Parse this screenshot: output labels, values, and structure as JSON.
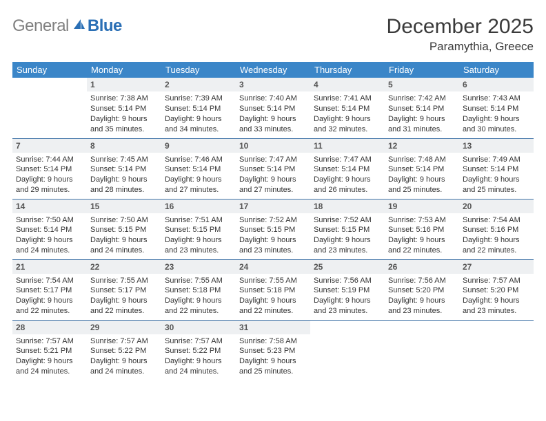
{
  "brand": {
    "gray": "General",
    "blue": "Blue"
  },
  "title": "December 2025",
  "location": "Paramythia, Greece",
  "colors": {
    "header_bg": "#3b86c8",
    "header_text": "#ffffff",
    "row_divider": "#3b6fa5",
    "daynum_bg": "#eef0f2",
    "body_text": "#333333",
    "logo_gray": "#808080",
    "logo_blue": "#2a6fb5",
    "background": "#ffffff"
  },
  "typography": {
    "month_title_fontsize": 30,
    "location_fontsize": 17,
    "dayhead_fontsize": 13,
    "daynum_fontsize": 12,
    "dayinfo_fontsize": 11
  },
  "calendar": {
    "type": "table",
    "columns": [
      "Sunday",
      "Monday",
      "Tuesday",
      "Wednesday",
      "Thursday",
      "Friday",
      "Saturday"
    ],
    "weeks": [
      [
        null,
        {
          "n": "1",
          "sr": "7:38 AM",
          "ss": "5:14 PM",
          "dl": "9 hours and 35 minutes."
        },
        {
          "n": "2",
          "sr": "7:39 AM",
          "ss": "5:14 PM",
          "dl": "9 hours and 34 minutes."
        },
        {
          "n": "3",
          "sr": "7:40 AM",
          "ss": "5:14 PM",
          "dl": "9 hours and 33 minutes."
        },
        {
          "n": "4",
          "sr": "7:41 AM",
          "ss": "5:14 PM",
          "dl": "9 hours and 32 minutes."
        },
        {
          "n": "5",
          "sr": "7:42 AM",
          "ss": "5:14 PM",
          "dl": "9 hours and 31 minutes."
        },
        {
          "n": "6",
          "sr": "7:43 AM",
          "ss": "5:14 PM",
          "dl": "9 hours and 30 minutes."
        }
      ],
      [
        {
          "n": "7",
          "sr": "7:44 AM",
          "ss": "5:14 PM",
          "dl": "9 hours and 29 minutes."
        },
        {
          "n": "8",
          "sr": "7:45 AM",
          "ss": "5:14 PM",
          "dl": "9 hours and 28 minutes."
        },
        {
          "n": "9",
          "sr": "7:46 AM",
          "ss": "5:14 PM",
          "dl": "9 hours and 27 minutes."
        },
        {
          "n": "10",
          "sr": "7:47 AM",
          "ss": "5:14 PM",
          "dl": "9 hours and 27 minutes."
        },
        {
          "n": "11",
          "sr": "7:47 AM",
          "ss": "5:14 PM",
          "dl": "9 hours and 26 minutes."
        },
        {
          "n": "12",
          "sr": "7:48 AM",
          "ss": "5:14 PM",
          "dl": "9 hours and 25 minutes."
        },
        {
          "n": "13",
          "sr": "7:49 AM",
          "ss": "5:14 PM",
          "dl": "9 hours and 25 minutes."
        }
      ],
      [
        {
          "n": "14",
          "sr": "7:50 AM",
          "ss": "5:14 PM",
          "dl": "9 hours and 24 minutes."
        },
        {
          "n": "15",
          "sr": "7:50 AM",
          "ss": "5:15 PM",
          "dl": "9 hours and 24 minutes."
        },
        {
          "n": "16",
          "sr": "7:51 AM",
          "ss": "5:15 PM",
          "dl": "9 hours and 23 minutes."
        },
        {
          "n": "17",
          "sr": "7:52 AM",
          "ss": "5:15 PM",
          "dl": "9 hours and 23 minutes."
        },
        {
          "n": "18",
          "sr": "7:52 AM",
          "ss": "5:15 PM",
          "dl": "9 hours and 23 minutes."
        },
        {
          "n": "19",
          "sr": "7:53 AM",
          "ss": "5:16 PM",
          "dl": "9 hours and 22 minutes."
        },
        {
          "n": "20",
          "sr": "7:54 AM",
          "ss": "5:16 PM",
          "dl": "9 hours and 22 minutes."
        }
      ],
      [
        {
          "n": "21",
          "sr": "7:54 AM",
          "ss": "5:17 PM",
          "dl": "9 hours and 22 minutes."
        },
        {
          "n": "22",
          "sr": "7:55 AM",
          "ss": "5:17 PM",
          "dl": "9 hours and 22 minutes."
        },
        {
          "n": "23",
          "sr": "7:55 AM",
          "ss": "5:18 PM",
          "dl": "9 hours and 22 minutes."
        },
        {
          "n": "24",
          "sr": "7:55 AM",
          "ss": "5:18 PM",
          "dl": "9 hours and 22 minutes."
        },
        {
          "n": "25",
          "sr": "7:56 AM",
          "ss": "5:19 PM",
          "dl": "9 hours and 23 minutes."
        },
        {
          "n": "26",
          "sr": "7:56 AM",
          "ss": "5:20 PM",
          "dl": "9 hours and 23 minutes."
        },
        {
          "n": "27",
          "sr": "7:57 AM",
          "ss": "5:20 PM",
          "dl": "9 hours and 23 minutes."
        }
      ],
      [
        {
          "n": "28",
          "sr": "7:57 AM",
          "ss": "5:21 PM",
          "dl": "9 hours and 24 minutes."
        },
        {
          "n": "29",
          "sr": "7:57 AM",
          "ss": "5:22 PM",
          "dl": "9 hours and 24 minutes."
        },
        {
          "n": "30",
          "sr": "7:57 AM",
          "ss": "5:22 PM",
          "dl": "9 hours and 24 minutes."
        },
        {
          "n": "31",
          "sr": "7:58 AM",
          "ss": "5:23 PM",
          "dl": "9 hours and 25 minutes."
        },
        null,
        null,
        null
      ]
    ],
    "labels": {
      "sunrise": "Sunrise:",
      "sunset": "Sunset:",
      "daylight": "Daylight:"
    }
  }
}
